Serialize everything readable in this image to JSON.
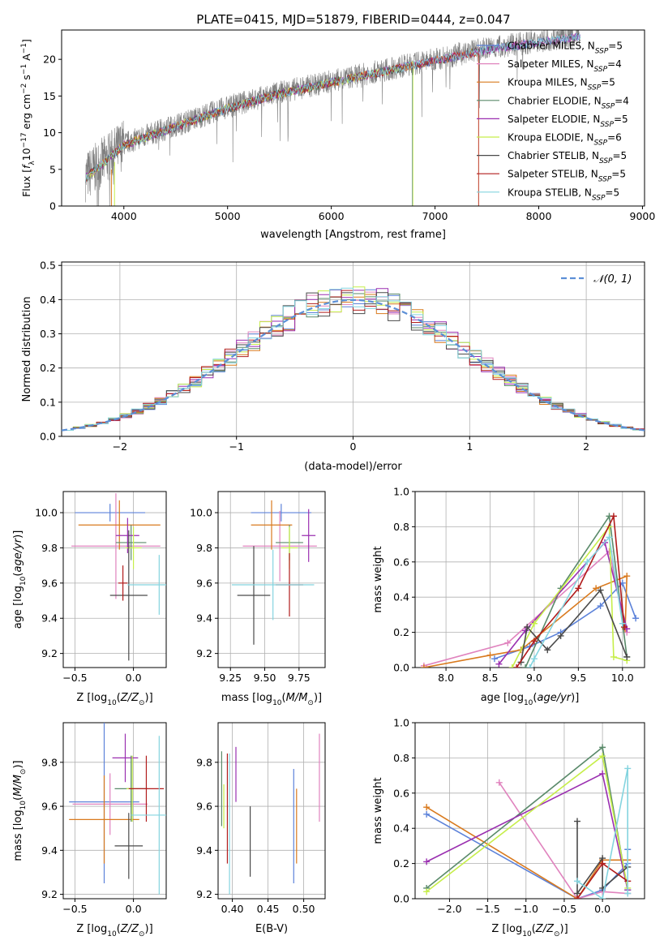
{
  "figure": {
    "title": "PLATE=0415, MJD=51879, FIBERID=0444, z=0.047"
  },
  "series": [
    {
      "name": "Chabrier MILES",
      "nssp": "5",
      "color": "#5c82d9"
    },
    {
      "name": "Salpeter MILES",
      "nssp": "4",
      "color": "#e083be"
    },
    {
      "name": "Kroupa MILES",
      "nssp": "5",
      "color": "#d97a1e"
    },
    {
      "name": "Chabrier ELODIE",
      "nssp": "4",
      "color": "#5a8a6a"
    },
    {
      "name": "Salpeter ELODIE",
      "nssp": "5",
      "color": "#9a2fb0"
    },
    {
      "name": "Kroupa ELODIE",
      "nssp": "6",
      "color": "#c6ee4a"
    },
    {
      "name": "Chabrier STELIB",
      "nssp": "5",
      "color": "#4a4a4a"
    },
    {
      "name": "Salpeter STELIB",
      "nssp": "5",
      "color": "#b11c1c"
    },
    {
      "name": "Kroupa STELIB",
      "nssp": "5",
      "color": "#84d4df"
    }
  ],
  "chart_data": [
    {
      "id": "spectrum",
      "type": "line",
      "xlabel": "wavelength [Angstrom, rest frame]",
      "ylabel_text": "Flux [",
      "ylabel_math": "f",
      "ylabel_unit": "10",
      "xlim": [
        3400,
        9020
      ],
      "ylim": [
        0,
        24
      ],
      "xticks": [
        4000,
        5000,
        6000,
        7000,
        8000,
        9000
      ],
      "yticks": [
        0,
        5,
        10,
        15,
        20
      ],
      "data_color": "#808080",
      "data_envelope": {
        "x": [
          3630,
          3800,
          4000,
          4500,
          5000,
          5500,
          6000,
          6500,
          7000,
          7500,
          8000,
          8500,
          9000
        ],
        "y": [
          4,
          6,
          8.5,
          11,
          13.5,
          15.5,
          17,
          18.5,
          20,
          21.5,
          22.5,
          23.5,
          24
        ]
      },
      "legend_loc": "right"
    },
    {
      "id": "residuals",
      "type": "histogram",
      "xlabel": "(data-model)/error",
      "ylabel": "Normed distribution",
      "xlim": [
        -2.5,
        2.5
      ],
      "ylim": [
        0,
        0.51
      ],
      "xticks": [
        -2,
        -1,
        0,
        1,
        2
      ],
      "yticks": [
        0.0,
        0.1,
        0.2,
        0.3,
        0.4,
        0.5
      ],
      "bin_width": 0.1,
      "reference_label": "𝒩(0, 1)",
      "reference_color": "#5c8fd6",
      "legend_loc": "upper right"
    },
    {
      "id": "age-vs-Z",
      "type": "scatter",
      "xlabel": "Z [log10(Z/Z⊙)]",
      "ylabel": "age  [log10(age/yr)]",
      "xlim": [
        -0.6,
        0.28
      ],
      "ylim": [
        9.12,
        10.12
      ],
      "xticks": [
        -0.5,
        0.0
      ],
      "yticks": [
        9.2,
        9.4,
        9.6,
        9.8,
        10.0
      ],
      "points": [
        {
          "s": 0,
          "x": -0.2,
          "y": 10.0,
          "xerr": 0.3,
          "yerr": 0.05
        },
        {
          "s": 1,
          "x": -0.15,
          "y": 9.81,
          "xerr": 0.38,
          "yerr": 0.3
        },
        {
          "s": 2,
          "x": -0.12,
          "y": 9.93,
          "xerr": 0.35,
          "yerr": 0.14
        },
        {
          "s": 3,
          "x": -0.02,
          "y": 9.83,
          "xerr": 0.13,
          "yerr": 0.1
        },
        {
          "s": 4,
          "x": -0.05,
          "y": 9.87,
          "xerr": 0.1,
          "yerr": 0.1
        },
        {
          "s": 5,
          "x": 0.0,
          "y": 9.8,
          "xerr": 0.07,
          "yerr": 0.12
        },
        {
          "s": 6,
          "x": -0.04,
          "y": 9.53,
          "xerr": 0.16,
          "yerr": 0.37
        },
        {
          "s": 7,
          "x": -0.09,
          "y": 9.6,
          "xerr": 0.04,
          "yerr": 0.1
        },
        {
          "s": 8,
          "x": 0.22,
          "y": 9.59,
          "xerr": 0.27,
          "yerr": 0.17
        }
      ]
    },
    {
      "id": "age-vs-mass",
      "type": "scatter",
      "xlabel": "mass [log10(M/M⊙)]",
      "ylabel": "",
      "xlim": [
        9.16,
        9.94
      ],
      "ylim": [
        9.12,
        10.12
      ],
      "xticks": [
        9.25,
        9.5,
        9.75
      ],
      "yticks": [
        9.2,
        9.4,
        9.6,
        9.8,
        10.0
      ],
      "points": [
        {
          "s": 0,
          "x": 9.62,
          "y": 10.0,
          "xerr": 0.22,
          "yerr": 0.05
        },
        {
          "s": 1,
          "x": 9.61,
          "y": 9.81,
          "xerr": 0.27,
          "yerr": 0.2
        },
        {
          "s": 2,
          "x": 9.55,
          "y": 9.93,
          "xerr": 0.15,
          "yerr": 0.14
        },
        {
          "s": 3,
          "x": 9.68,
          "y": 9.83,
          "xerr": 0.1,
          "yerr": 0.1
        },
        {
          "s": 4,
          "x": 9.82,
          "y": 9.87,
          "xerr": 0.05,
          "yerr": 0.15
        },
        {
          "s": 5,
          "x": 9.68,
          "y": 9.8,
          "xerr": 0.06,
          "yerr": 0.12
        },
        {
          "s": 6,
          "x": 9.42,
          "y": 9.53,
          "xerr": 0.12,
          "yerr": 0.28
        },
        {
          "s": 7,
          "x": 9.68,
          "y": 9.59,
          "xerr": 0.1,
          "yerr": 0.18
        },
        {
          "s": 8,
          "x": 9.56,
          "y": 9.59,
          "xerr": 0.3,
          "yerr": 0.2
        }
      ]
    },
    {
      "id": "massweight-vs-age",
      "type": "line",
      "xlabel": "age  [log10(age/yr)]",
      "ylabel": "mass weight",
      "xlim": [
        7.65,
        10.25
      ],
      "ylim": [
        0,
        1.0
      ],
      "xticks": [
        8.0,
        8.5,
        9.0,
        9.5,
        10.0
      ],
      "yticks": [
        0.0,
        0.2,
        0.4,
        0.6,
        0.8,
        1.0
      ],
      "series": [
        {
          "s": 0,
          "x": [
            8.55,
            8.95,
            9.3,
            9.75,
            10.0,
            10.15
          ],
          "y": [
            0.05,
            0.12,
            0.2,
            0.35,
            0.48,
            0.28
          ]
        },
        {
          "s": 1,
          "x": [
            7.75,
            8.7,
            9.85,
            10.05
          ],
          "y": [
            0.01,
            0.14,
            0.66,
            0.2
          ]
        },
        {
          "s": 2,
          "x": [
            7.75,
            8.5,
            8.85,
            9.7,
            10.05,
            10.03
          ],
          "y": [
            0.0,
            0.07,
            0.1,
            0.45,
            0.52,
            0.22
          ]
        },
        {
          "s": 3,
          "x": [
            8.9,
            9.3,
            9.85,
            10.05
          ],
          "y": [
            0.0,
            0.45,
            0.86,
            0.06
          ]
        },
        {
          "s": 4,
          "x": [
            8.6,
            8.9,
            9.8,
            10.05
          ],
          "y": [
            0.02,
            0.21,
            0.71,
            0.22
          ]
        },
        {
          "s": 5,
          "x": [
            8.75,
            9.0,
            9.85,
            9.9,
            10.05
          ],
          "y": [
            0.0,
            0.25,
            0.8,
            0.06,
            0.04
          ]
        },
        {
          "s": 6,
          "x": [
            8.85,
            8.92,
            9.15,
            9.3,
            9.75,
            10.05
          ],
          "y": [
            0.03,
            0.23,
            0.1,
            0.18,
            0.44,
            0.06
          ]
        },
        {
          "s": 7,
          "x": [
            8.8,
            9.0,
            9.5,
            9.9,
            10.02
          ],
          "y": [
            0.0,
            0.15,
            0.45,
            0.86,
            0.23
          ]
        },
        {
          "s": 8,
          "x": [
            8.95,
            9.0,
            9.6,
            9.85,
            10.0
          ],
          "y": [
            0.0,
            0.05,
            0.6,
            0.74,
            0.25
          ]
        }
      ]
    },
    {
      "id": "mass-vs-Z",
      "type": "scatter",
      "xlabel": "Z [log10(Z/Z⊙)]",
      "ylabel": "mass [log10(M/M⊙)]",
      "xlim": [
        -0.6,
        0.28
      ],
      "ylim": [
        9.18,
        9.98
      ],
      "xticks": [
        -0.5,
        0.0
      ],
      "yticks": [
        9.2,
        9.4,
        9.6,
        9.8
      ],
      "points": [
        {
          "s": 0,
          "x": -0.25,
          "y": 9.62,
          "xerr": 0.3,
          "yerr": 0.37
        },
        {
          "s": 1,
          "x": -0.2,
          "y": 9.61,
          "xerr": 0.32,
          "yerr": 0.14
        },
        {
          "s": 2,
          "x": -0.25,
          "y": 9.54,
          "xerr": 0.3,
          "yerr": 0.2
        },
        {
          "s": 3,
          "x": -0.02,
          "y": 9.68,
          "xerr": 0.14,
          "yerr": 0.15
        },
        {
          "s": 4,
          "x": -0.07,
          "y": 9.82,
          "xerr": 0.11,
          "yerr": 0.11
        },
        {
          "s": 5,
          "x": -0.01,
          "y": 9.68,
          "xerr": 0.05,
          "yerr": 0.15
        },
        {
          "s": 6,
          "x": -0.04,
          "y": 9.42,
          "xerr": 0.12,
          "yerr": 0.15
        },
        {
          "s": 7,
          "x": 0.11,
          "y": 9.68,
          "xerr": 0.15,
          "yerr": 0.15
        },
        {
          "s": 8,
          "x": 0.22,
          "y": 9.56,
          "xerr": 0.24,
          "yerr": 0.36
        }
      ]
    },
    {
      "id": "mass-vs-ebv",
      "type": "scatter",
      "xlabel": "E(B-V)",
      "ylabel": "",
      "xlim": [
        0.38,
        0.53
      ],
      "ylim": [
        9.18,
        9.98
      ],
      "xticks": [
        0.4,
        0.45,
        0.5
      ],
      "yticks": [
        9.2,
        9.4,
        9.6,
        9.8
      ],
      "points": [
        {
          "s": 0,
          "x": 0.486,
          "y": 9.51,
          "xerr": 0,
          "yerr": 0.26
        },
        {
          "s": 1,
          "x": 0.522,
          "y": 9.73,
          "xerr": 0,
          "yerr": 0.2
        },
        {
          "s": 2,
          "x": 0.49,
          "y": 9.51,
          "xerr": 0,
          "yerr": 0.17
        },
        {
          "s": 3,
          "x": 0.385,
          "y": 9.68,
          "xerr": 0,
          "yerr": 0.17
        },
        {
          "s": 4,
          "x": 0.405,
          "y": 9.745,
          "xerr": 0,
          "yerr": 0.125
        },
        {
          "s": 5,
          "x": 0.388,
          "y": 9.6,
          "xerr": 0,
          "yerr": 0.1
        },
        {
          "s": 6,
          "x": 0.425,
          "y": 9.44,
          "xerr": 0,
          "yerr": 0.16
        },
        {
          "s": 7,
          "x": 0.393,
          "y": 9.59,
          "xerr": 0,
          "yerr": 0.25
        },
        {
          "s": 8,
          "x": 0.396,
          "y": 9.52,
          "xerr": 0,
          "yerr": 0.32
        }
      ]
    },
    {
      "id": "massweight-vs-Z",
      "type": "line",
      "xlabel": "Z [log10(Z/Z⊙)]",
      "ylabel": "mass weight",
      "xlim": [
        -2.45,
        0.55
      ],
      "ylim": [
        0,
        1.0
      ],
      "xticks": [
        -2.0,
        -1.5,
        -1.0,
        -0.5,
        0.0
      ],
      "yticks": [
        0.0,
        0.2,
        0.4,
        0.6,
        0.8,
        1.0
      ],
      "series": [
        {
          "s": 0,
          "x": [
            -2.3,
            -0.33,
            0.0,
            0.33,
            0.33
          ],
          "y": [
            0.48,
            0.0,
            0.05,
            0.2,
            0.28
          ]
        },
        {
          "s": 1,
          "x": [
            -1.35,
            -0.33,
            0.0,
            0.33
          ],
          "y": [
            0.66,
            0.0,
            0.04,
            0.03
          ]
        },
        {
          "s": 2,
          "x": [
            -2.3,
            -0.33,
            0.0,
            0.33
          ],
          "y": [
            0.52,
            0.0,
            0.22,
            0.22
          ]
        },
        {
          "s": 3,
          "x": [
            -2.3,
            0.0,
            0.33
          ],
          "y": [
            0.06,
            0.86,
            0.05
          ]
        },
        {
          "s": 4,
          "x": [
            -2.3,
            0.0,
            0.33
          ],
          "y": [
            0.21,
            0.71,
            0.05
          ]
        },
        {
          "s": 5,
          "x": [
            -2.3,
            0.0,
            0.33
          ],
          "y": [
            0.04,
            0.81,
            0.06
          ]
        },
        {
          "s": 6,
          "x": [
            -0.33,
            -0.33,
            0.0,
            0.0,
            0.33
          ],
          "y": [
            0.44,
            0.03,
            0.23,
            0.06,
            0.18
          ]
        },
        {
          "s": 7,
          "x": [
            -0.33,
            0.0,
            0.33
          ],
          "y": [
            0.0,
            0.2,
            0.1
          ]
        },
        {
          "s": 8,
          "x": [
            -0.33,
            0.0,
            0.33,
            0.33
          ],
          "y": [
            0.1,
            0.0,
            0.74,
            0.03
          ]
        }
      ]
    }
  ]
}
